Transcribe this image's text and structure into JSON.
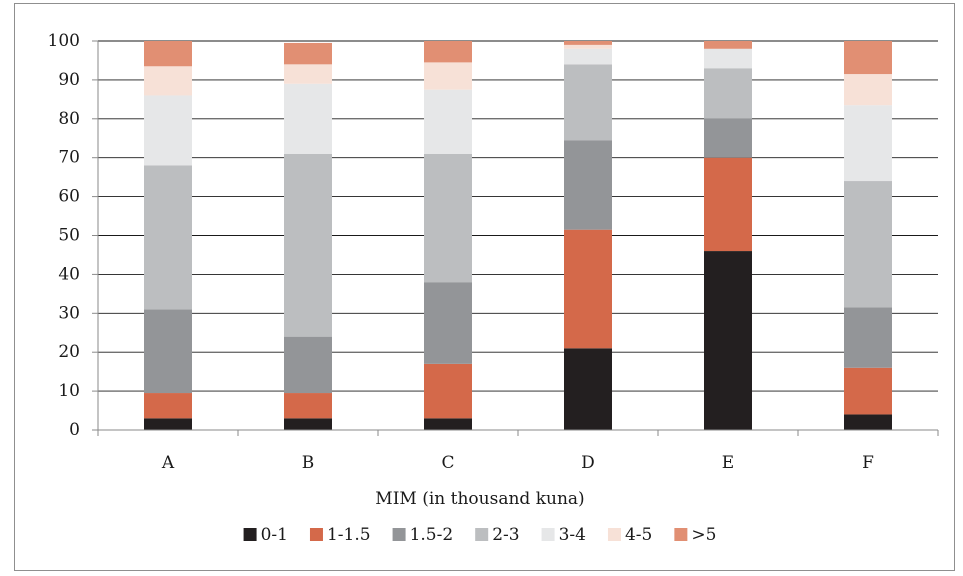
{
  "chart_data": {
    "type": "bar",
    "stacked": true,
    "title": "",
    "xlabel": "MIM (in thousand kuna)",
    "ylabel": "",
    "ylim": [
      0,
      100
    ],
    "yticks": [
      "0",
      "10",
      "20",
      "30",
      "40",
      "50",
      "60",
      "70",
      "80",
      "90",
      "100"
    ],
    "grid": true,
    "legend_position": "bottom",
    "categories": [
      "A",
      "B",
      "C",
      "D",
      "E",
      "F"
    ],
    "series": [
      {
        "name": "0-1",
        "color": "#231f20",
        "values": [
          3,
          3,
          3,
          21,
          46,
          4
        ]
      },
      {
        "name": "1-1.5",
        "color": "#d4694a",
        "values": [
          6.5,
          6.5,
          14,
          30.5,
          24,
          12
        ]
      },
      {
        "name": "1.5-2",
        "color": "#939598",
        "values": [
          21.5,
          14.5,
          21,
          23,
          10,
          15.5
        ]
      },
      {
        "name": "2-3",
        "color": "#bcbec0",
        "values": [
          37,
          47,
          33,
          19.5,
          13,
          32.5
        ]
      },
      {
        "name": "3-4",
        "color": "#e6e7e8",
        "values": [
          18,
          18,
          16.5,
          4,
          5,
          19.5
        ]
      },
      {
        "name": "4-5",
        "color": "#f7e1d7",
        "values": [
          7.5,
          5,
          7,
          1,
          0,
          8
        ]
      },
      {
        "name": ">5",
        "color": "#e18f73",
        "values": [
          6.5,
          5.5,
          5.5,
          1,
          2,
          8.5
        ]
      }
    ]
  }
}
